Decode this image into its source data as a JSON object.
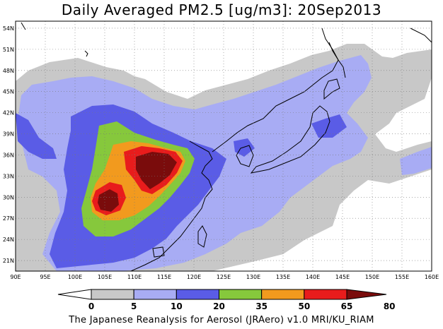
{
  "title": "Daily Averaged PM2.5 [ug/m3]: 20Sep2013",
  "credit": "The Japanese Reanalysis for Aerosol (JRAero) v1.0 MRI/KU_RIAM",
  "map": {
    "lon_range": [
      90,
      160
    ],
    "lat_range": [
      19.5,
      55
    ],
    "x_ticks": [
      "90E",
      "95E",
      "100E",
      "105E",
      "110E",
      "115E",
      "120E",
      "125E",
      "130E",
      "135E",
      "140E",
      "145E",
      "150E",
      "155E",
      "160E"
    ],
    "y_ticks": [
      "21N",
      "24N",
      "27N",
      "30N",
      "33N",
      "36N",
      "39N",
      "42N",
      "45N",
      "48N",
      "51N",
      "54N"
    ],
    "grid": "dotted"
  },
  "colorbar": {
    "levels": [
      "0",
      "5",
      "10",
      "20",
      "35",
      "50",
      "65",
      "80"
    ],
    "colors": [
      "#ffffff",
      "#c8c8c8",
      "#a8acf4",
      "#5a5ce6",
      "#86c83c",
      "#f29a1e",
      "#e81c1c",
      "#7a0c0c"
    ]
  }
}
